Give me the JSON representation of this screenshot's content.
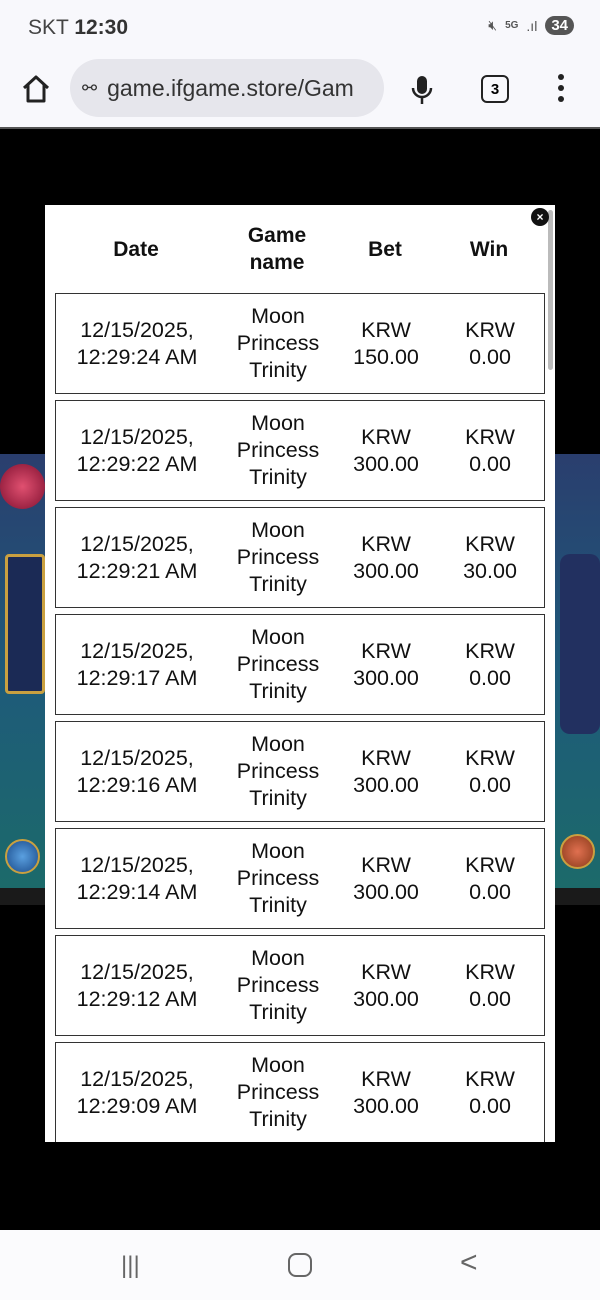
{
  "status": {
    "carrier": "SKT",
    "time": "12:30",
    "network": "5G",
    "battery": "34"
  },
  "browser": {
    "url": "game.ifgame.store/Gam",
    "tab_count": "3"
  },
  "history": {
    "headers": {
      "date": "Date",
      "game": "Game name",
      "bet": "Bet",
      "win": "Win"
    },
    "rows": [
      {
        "date": "12/15/2025, 12:29:24 AM",
        "game": "Moon Princess Trinity",
        "bet": "KRW 150.00",
        "win": "KRW 0.00"
      },
      {
        "date": "12/15/2025, 12:29:22 AM",
        "game": "Moon Princess Trinity",
        "bet": "KRW 300.00",
        "win": "KRW 0.00"
      },
      {
        "date": "12/15/2025, 12:29:21 AM",
        "game": "Moon Princess Trinity",
        "bet": "KRW 300.00",
        "win": "KRW 30.00"
      },
      {
        "date": "12/15/2025, 12:29:17 AM",
        "game": "Moon Princess Trinity",
        "bet": "KRW 300.00",
        "win": "KRW 0.00"
      },
      {
        "date": "12/15/2025, 12:29:16 AM",
        "game": "Moon Princess Trinity",
        "bet": "KRW 300.00",
        "win": "KRW 0.00"
      },
      {
        "date": "12/15/2025, 12:29:14 AM",
        "game": "Moon Princess Trinity",
        "bet": "KRW 300.00",
        "win": "KRW 0.00"
      },
      {
        "date": "12/15/2025, 12:29:12 AM",
        "game": "Moon Princess Trinity",
        "bet": "KRW 300.00",
        "win": "KRW 0.00"
      },
      {
        "date": "12/15/2025, 12:29:09 AM",
        "game": "Moon Princess Trinity",
        "bet": "KRW 300.00",
        "win": "KRW 0.00"
      }
    ]
  },
  "icons": {
    "close": "×",
    "mute": "mute-icon",
    "home": "home-icon",
    "mic": "mic-icon",
    "menu": "more-vert-icon"
  }
}
